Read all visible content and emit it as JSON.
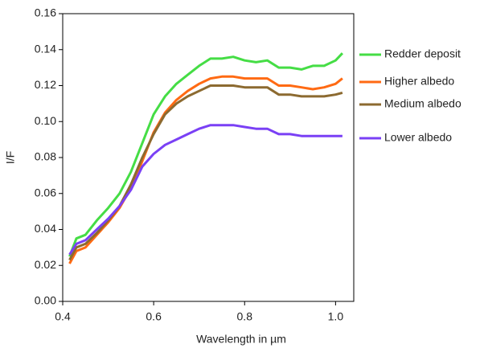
{
  "chart_data": {
    "type": "line",
    "x_label": "Wavelength in µm",
    "y_label": "I/F",
    "x": [
      0.415,
      0.43,
      0.45,
      0.475,
      0.5,
      0.525,
      0.55,
      0.575,
      0.6,
      0.625,
      0.65,
      0.675,
      0.7,
      0.725,
      0.75,
      0.775,
      0.8,
      0.825,
      0.85,
      0.875,
      0.9,
      0.925,
      0.95,
      0.975,
      1.0,
      1.015
    ],
    "series": [
      {
        "name": "Redder deposit",
        "color": "#45dd45",
        "values": [
          0.025,
          0.035,
          0.037,
          0.045,
          0.052,
          0.06,
          0.072,
          0.088,
          0.104,
          0.114,
          0.121,
          0.126,
          0.131,
          0.135,
          0.135,
          0.136,
          0.134,
          0.133,
          0.134,
          0.13,
          0.13,
          0.129,
          0.131,
          0.131,
          0.134,
          0.138
        ]
      },
      {
        "name": "Higher albedo",
        "color": "#ff6a13",
        "values": [
          0.021,
          0.028,
          0.03,
          0.037,
          0.044,
          0.052,
          0.063,
          0.078,
          0.094,
          0.105,
          0.112,
          0.117,
          0.121,
          0.124,
          0.125,
          0.125,
          0.124,
          0.124,
          0.124,
          0.12,
          0.12,
          0.119,
          0.118,
          0.119,
          0.121,
          0.124
        ]
      },
      {
        "name": "Medium albedo",
        "color": "#8c6a30",
        "values": [
          0.023,
          0.03,
          0.032,
          0.038,
          0.045,
          0.053,
          0.065,
          0.08,
          0.093,
          0.104,
          0.11,
          0.114,
          0.117,
          0.12,
          0.12,
          0.12,
          0.119,
          0.119,
          0.119,
          0.115,
          0.115,
          0.114,
          0.114,
          0.114,
          0.115,
          0.116
        ]
      },
      {
        "name": "Lower albedo",
        "color": "#7a40f5",
        "values": [
          0.026,
          0.032,
          0.034,
          0.04,
          0.046,
          0.053,
          0.062,
          0.075,
          0.082,
          0.087,
          0.09,
          0.093,
          0.096,
          0.098,
          0.098,
          0.098,
          0.097,
          0.096,
          0.096,
          0.093,
          0.093,
          0.092,
          0.092,
          0.092,
          0.092,
          0.092
        ]
      }
    ],
    "xlim": [
      0.4,
      1.04
    ],
    "ylim": [
      0,
      0.16
    ],
    "xticks": [
      0.4,
      0.6,
      0.8,
      {
        "value": 1,
        "label": "1.0"
      }
    ],
    "yticks": [
      {
        "value": 0,
        "label": "0.00"
      },
      {
        "value": 0.02,
        "label": "0.02"
      },
      {
        "value": 0.04,
        "label": "0.04"
      },
      {
        "value": 0.06,
        "label": "0.06"
      },
      {
        "value": 0.08,
        "label": "0.08"
      },
      {
        "value": 0.1,
        "label": "0.10"
      },
      {
        "value": 0.12,
        "label": "0.12"
      },
      {
        "value": 0.14,
        "label": "0.14"
      },
      {
        "value": 0.16,
        "label": "0.16"
      }
    ],
    "legend": "right"
  }
}
